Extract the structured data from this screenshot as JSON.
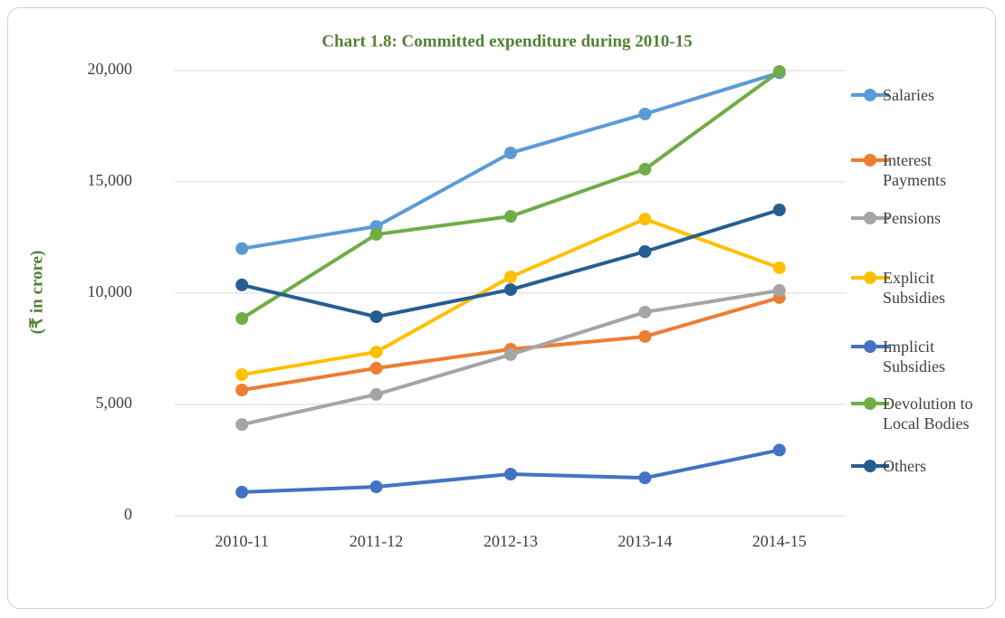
{
  "chart_data": {
    "type": "line",
    "title": "Chart 1.8: Committed expenditure  during 2010-15",
    "y_label": "(₹ in crore)",
    "categories": [
      "2010-11",
      "2011-12",
      "2012-13",
      "2013-14",
      "2014-15"
    ],
    "series": [
      {
        "name": "Salaries",
        "color": "#5b9bd5",
        "values": [
          12000,
          13000,
          16300,
          18050,
          19900
        ]
      },
      {
        "name": "Interest Payments",
        "color": "#ed7d31",
        "values": [
          5650,
          6630,
          7480,
          8050,
          9800
        ]
      },
      {
        "name": "Pensions",
        "color": "#a5a5a5",
        "values": [
          4100,
          5450,
          7240,
          9150,
          10120
        ]
      },
      {
        "name": "Explicit Subsidies",
        "color": "#ffc000",
        "values": [
          6340,
          7360,
          10730,
          13330,
          11140
        ]
      },
      {
        "name": "Implicit Subsidies",
        "color": "#4472c4",
        "values": [
          1060,
          1300,
          1870,
          1700,
          2950
        ]
      },
      {
        "name": "Devolution to Local Bodies",
        "color": "#70ad47",
        "values": [
          8860,
          12640,
          13450,
          15570,
          19960
        ]
      },
      {
        "name": "Others",
        "color": "#255e91",
        "values": [
          10370,
          8940,
          10160,
          11870,
          13740
        ]
      }
    ],
    "ylim": [
      0,
      20000
    ],
    "yticks": [
      0,
      {
        "value": 5000,
        "label": "5,000"
      },
      {
        "value": 10000,
        "label": "10,000"
      },
      {
        "value": 15000,
        "label": "15,000"
      },
      {
        "value": 20000,
        "label": "20,000"
      }
    ],
    "grid": true,
    "legend": "right"
  }
}
